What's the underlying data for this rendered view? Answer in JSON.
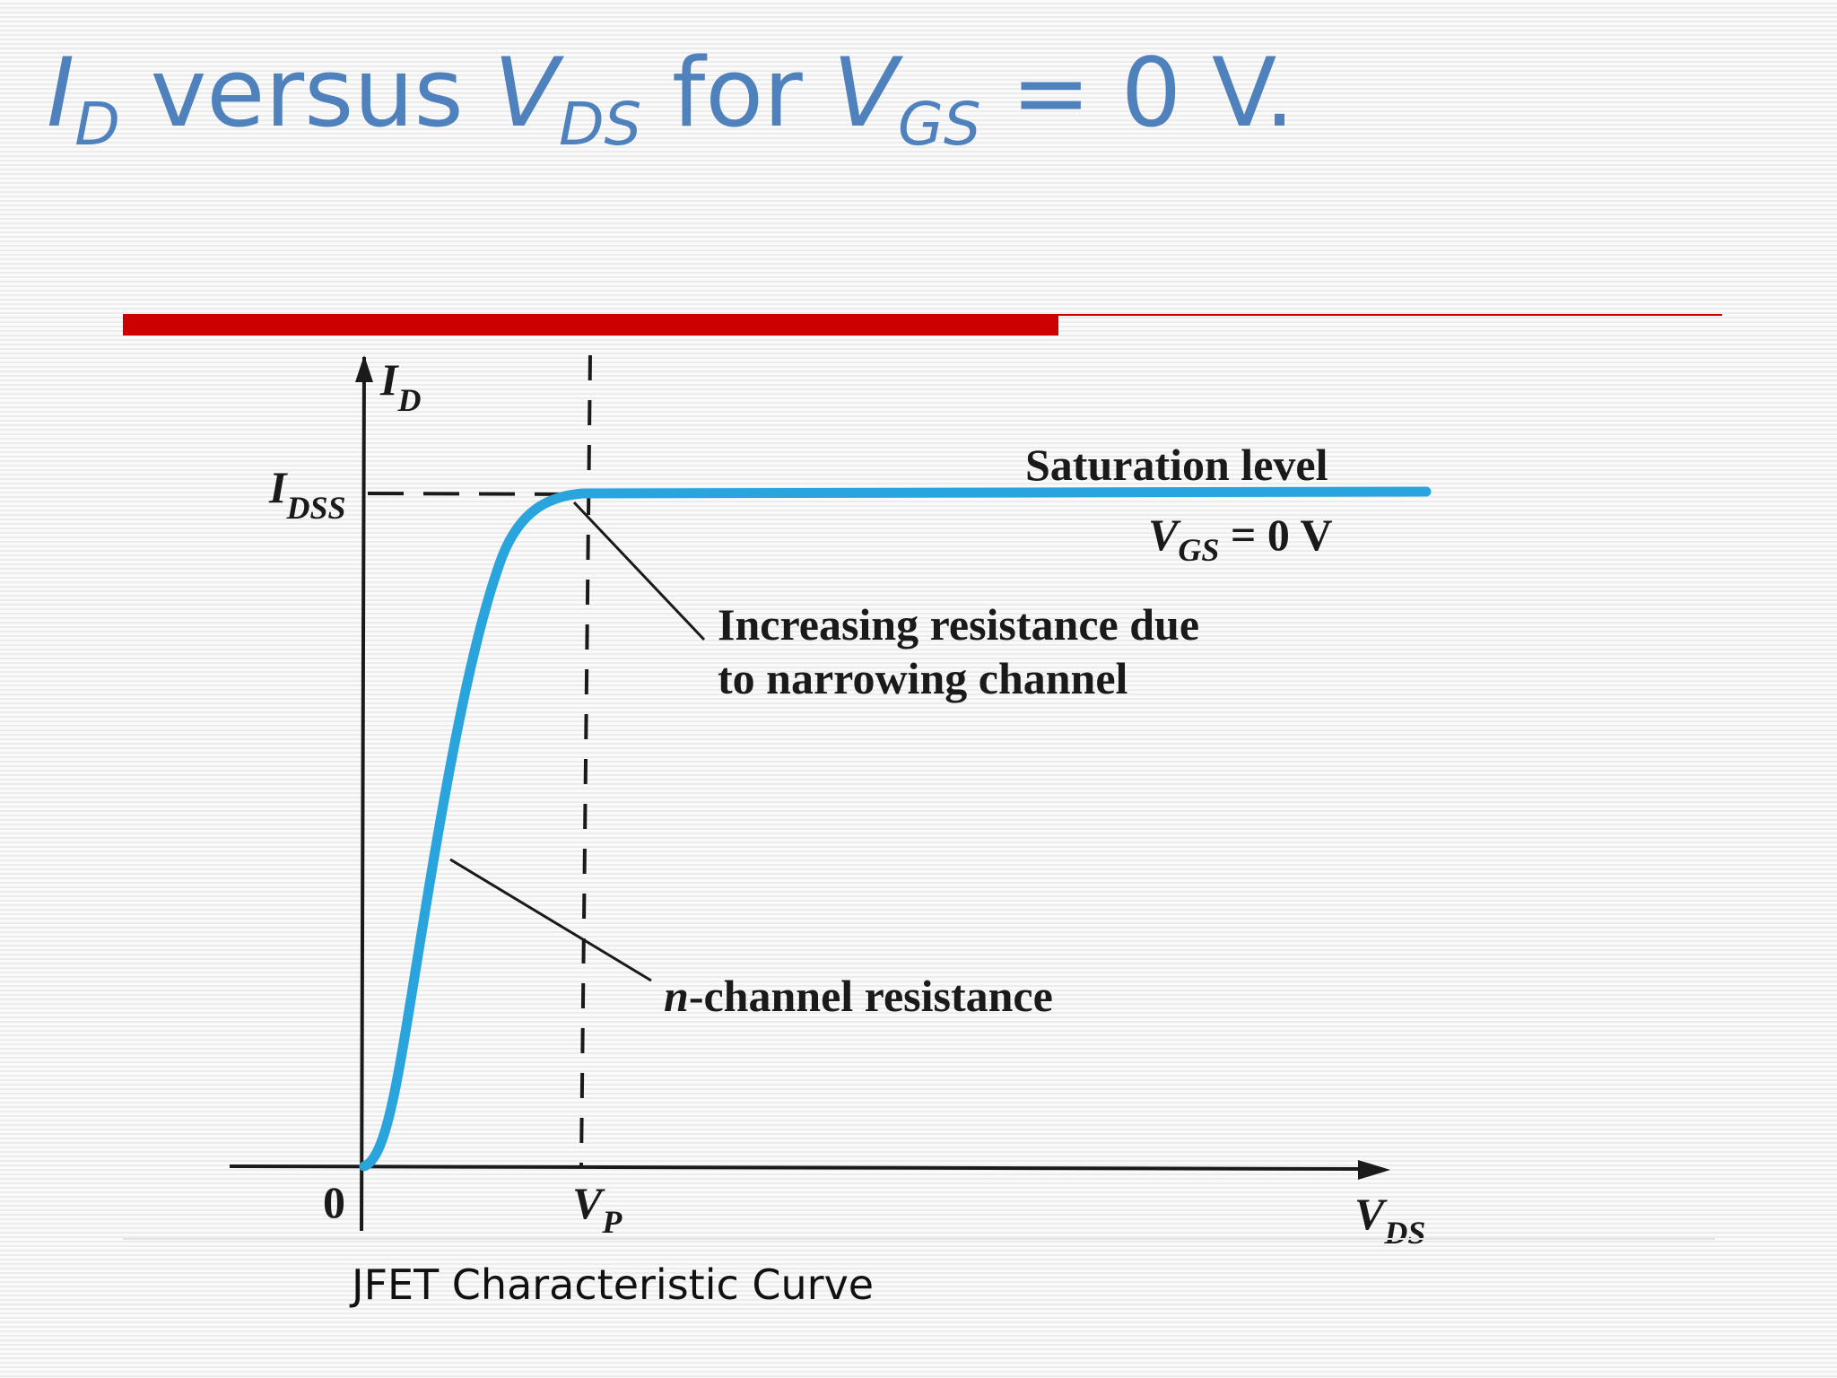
{
  "title": {
    "id_main": "I",
    "id_sub": "D",
    "versus": " versus ",
    "vds_main": "V",
    "vds_sub": "DS",
    "for": " for ",
    "vgs_main": "V",
    "vgs_sub": "GS",
    "equals": " = 0 V."
  },
  "diagram": {
    "y_axis_main": "I",
    "y_axis_sub": "D",
    "x_axis_main": "V",
    "x_axis_sub": "DS",
    "idss_main": "I",
    "idss_sub": "DSS",
    "origin": "0",
    "vp_main": "V",
    "vp_sub": "P",
    "saturation": "Saturation level",
    "vgs_main": "V",
    "vgs_sub": "GS",
    "vgs_value": " = 0 V",
    "increasing_line1": "Increasing resistance due",
    "increasing_line2": "to narrowing channel",
    "nchannel_italic": "n",
    "nchannel_rest": "-channel resistance"
  },
  "caption": "JFET Characteristic Curve",
  "colors": {
    "title": "#4f81bd",
    "accent": "#cc0000",
    "curve": "#2aa4dc",
    "ink": "#1a1a1a"
  }
}
